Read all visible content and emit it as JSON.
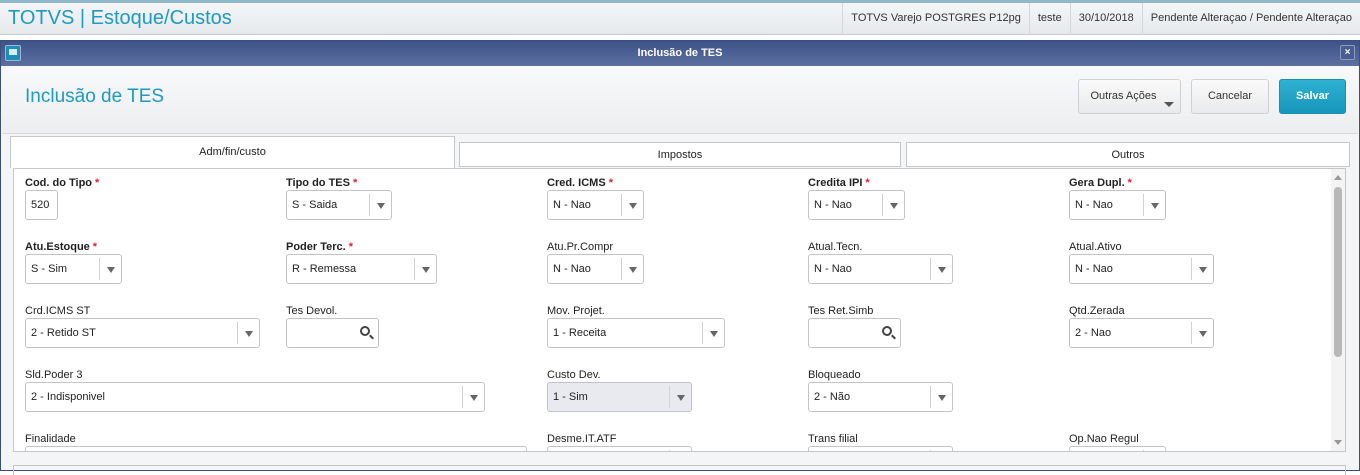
{
  "app": {
    "title": "TOTVS | Estoque/Custos",
    "status": [
      "TOTVS Varejo POSTGRES P12pg",
      "teste",
      "30/10/2018",
      "Pendente Alteraçao / Pendente Alteraçao"
    ]
  },
  "window": {
    "title": "Inclusão de TES",
    "close": "×"
  },
  "header": {
    "title": "Inclusão de TES",
    "other_actions": "Outras Ações",
    "cancel": "Cancelar",
    "save": "Salvar"
  },
  "tabs": [
    {
      "label": "Adm/fin/custo",
      "active": true
    },
    {
      "label": "Impostos",
      "active": false
    },
    {
      "label": "Outros",
      "active": false
    }
  ],
  "fields": [
    {
      "label": "Cod. do Tipo",
      "required": true,
      "type": "text",
      "value": "520"
    },
    {
      "label": "Tipo do TES",
      "required": true,
      "type": "select",
      "value": "S - Saida"
    },
    {
      "label": "Cred. ICMS",
      "required": true,
      "type": "select",
      "value": "N - Nao"
    },
    {
      "label": "Credita IPI",
      "required": true,
      "type": "select",
      "value": "N - Nao"
    },
    {
      "label": "Gera Dupl.",
      "required": true,
      "type": "select",
      "value": "N - Nao"
    },
    {
      "label": "Atu.Estoque",
      "required": true,
      "type": "select",
      "value": "S - Sim"
    },
    {
      "label": "Poder Terc.",
      "required": true,
      "type": "select",
      "value": "R - Remessa"
    },
    {
      "label": "Atu.Pr.Compr",
      "required": false,
      "type": "select",
      "value": "N - Nao"
    },
    {
      "label": "Atual.Tecn.",
      "required": false,
      "type": "select",
      "value": "N - Nao"
    },
    {
      "label": "Atual.Ativo",
      "required": false,
      "type": "select",
      "value": "N - Nao"
    },
    {
      "label": "Crd.ICMS ST",
      "required": false,
      "type": "select",
      "value": "2 - Retido ST"
    },
    {
      "label": "Tes Devol.",
      "required": false,
      "type": "search",
      "value": ""
    },
    {
      "label": "Mov. Projet.",
      "required": false,
      "type": "select",
      "value": "1 - Receita"
    },
    {
      "label": "Tes Ret.Simb",
      "required": false,
      "type": "search",
      "value": ""
    },
    {
      "label": "Qtd.Zerada",
      "required": false,
      "type": "select",
      "value": "2 - Nao"
    },
    {
      "label": "Sld.Poder 3",
      "required": false,
      "type": "select",
      "value": "2 - Indisponivel"
    },
    {
      "label": "Custo Dev.",
      "required": false,
      "type": "select",
      "value": "1 - Sim",
      "disabled": true
    },
    {
      "label": "Bloqueado",
      "required": false,
      "type": "select",
      "value": "2 - Não"
    },
    {
      "label": "Finalidade",
      "required": false,
      "type": "text",
      "value": ""
    },
    {
      "label": "Desme.IT.ATF",
      "required": false,
      "type": "select",
      "value": ""
    },
    {
      "label": "Trans filial",
      "required": false,
      "type": "select",
      "value": ""
    },
    {
      "label": "Op.Nao Regul",
      "required": false,
      "type": "select",
      "value": ""
    }
  ]
}
